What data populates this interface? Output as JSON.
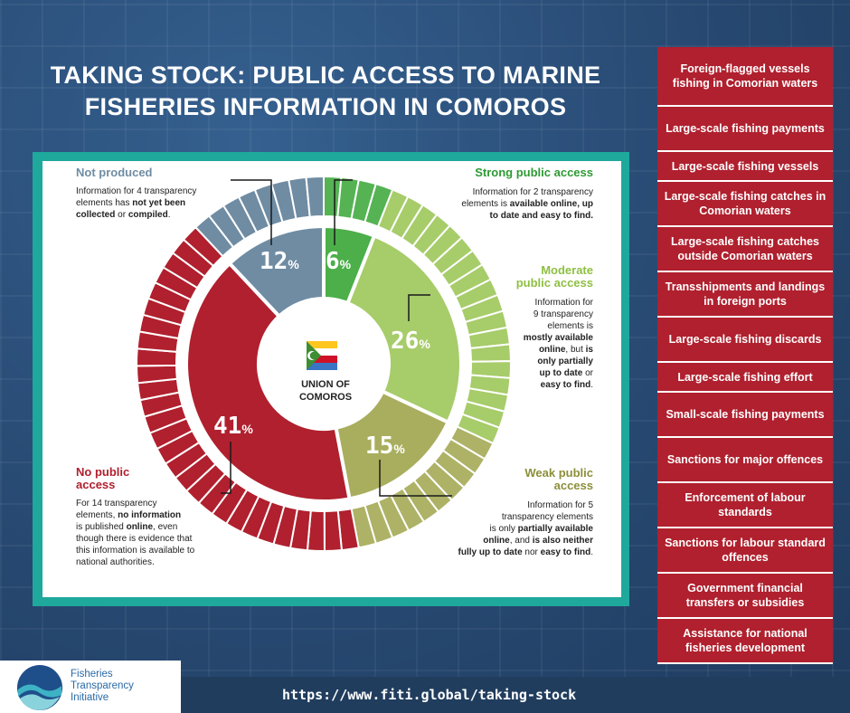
{
  "title_line1": "TAKING STOCK: PUBLIC ACCESS TO MARINE",
  "title_line2": "FISHERIES INFORMATION IN COMOROS",
  "center": {
    "line1": "UNION OF",
    "line2": "COMOROS"
  },
  "colors": {
    "strong": "#4caf4a",
    "moderate": "#a7cc6a",
    "weak": "#a9ae5e",
    "none": "#b0202e",
    "notproduced": "#6f8ca3",
    "text_strong": "#2e9a34",
    "text_moderate": "#8fbf43",
    "text_weak": "#8c8f3a",
    "text_none": "#b0202e",
    "text_notproduced": "#6f8ca3"
  },
  "labels": {
    "strong": {
      "title": "Strong public access",
      "desc1": "Information for 2 transparency",
      "desc2": "elements is ",
      "desc2b": "available online, up",
      "desc3": "to date and easy to find."
    },
    "moderate": {
      "title1": "Moderate",
      "title2": "public access",
      "d1": "Information for",
      "d2": "9 transparency",
      "d3": "elements is",
      "d4": "mostly available",
      "d5": "online",
      "d5b": ", but ",
      "d5c": "is",
      "d6": "only partially",
      "d7": "up to date",
      "d7b": " or",
      "d8": "easy to find",
      "d8b": "."
    },
    "weak": {
      "title1": "Weak public",
      "title2": "access",
      "d1": "Information for 5",
      "d2": "transparency elements",
      "d3": "is only ",
      "d3b": "partially available",
      "d4": "online",
      "d4b": ", and ",
      "d4c": "is also neither",
      "d5": "fully up to date",
      "d5b": " nor ",
      "d5c": "easy to find",
      "d5d": "."
    },
    "none": {
      "title1": "No public",
      "title2": "access",
      "d1": "For 14 transparency",
      "d2": "elements, ",
      "d2b": "no information",
      "d3": "is published ",
      "d3b": "online",
      "d3c": ", even",
      "d4": "though there is evidence that",
      "d5": "this information is available to",
      "d6": "national authorities."
    },
    "notproduced": {
      "title": "Not produced",
      "d1": "Information for 4 transparency",
      "d2": "elements has ",
      "d2b": "not yet been",
      "d3": "collected",
      "d3b": " or ",
      "d3c": "compiled",
      "d3d": "."
    }
  },
  "chart_data": {
    "type": "pie",
    "variant": "donut with outer segmented ring",
    "categories": [
      "Strong public access",
      "Moderate public access",
      "Weak public access",
      "No public access",
      "Not produced"
    ],
    "values": [
      6,
      26,
      15,
      41,
      12
    ],
    "value_labels": [
      "6",
      "26",
      "15",
      "41",
      "12"
    ],
    "percent_sign": "%",
    "element_counts": [
      2,
      9,
      5,
      14,
      4
    ]
  },
  "elements_list": [
    "Foreign-flagged vessels fishing in Comorian waters",
    "Large-scale fishing payments",
    "Large-scale fishing vessels",
    "Large-scale fishing catches in Comorian waters",
    "Large-scale fishing catches outside Comorian waters",
    "Transshipments and landings in foreign ports",
    "Large-scale fishing discards",
    "Large-scale fishing effort",
    "Small-scale fishing payments",
    "Sanctions for major offences",
    "Enforcement of labour standards",
    "Sanctions for labour standard offences",
    "Government financial transfers or subsidies",
    "Assistance for national fisheries development"
  ],
  "footer": {
    "url": "https://www.fiti.global/taking-stock"
  },
  "logo": {
    "line1": "Fisheries",
    "line2": "Transparency",
    "line3": "Initiative"
  }
}
